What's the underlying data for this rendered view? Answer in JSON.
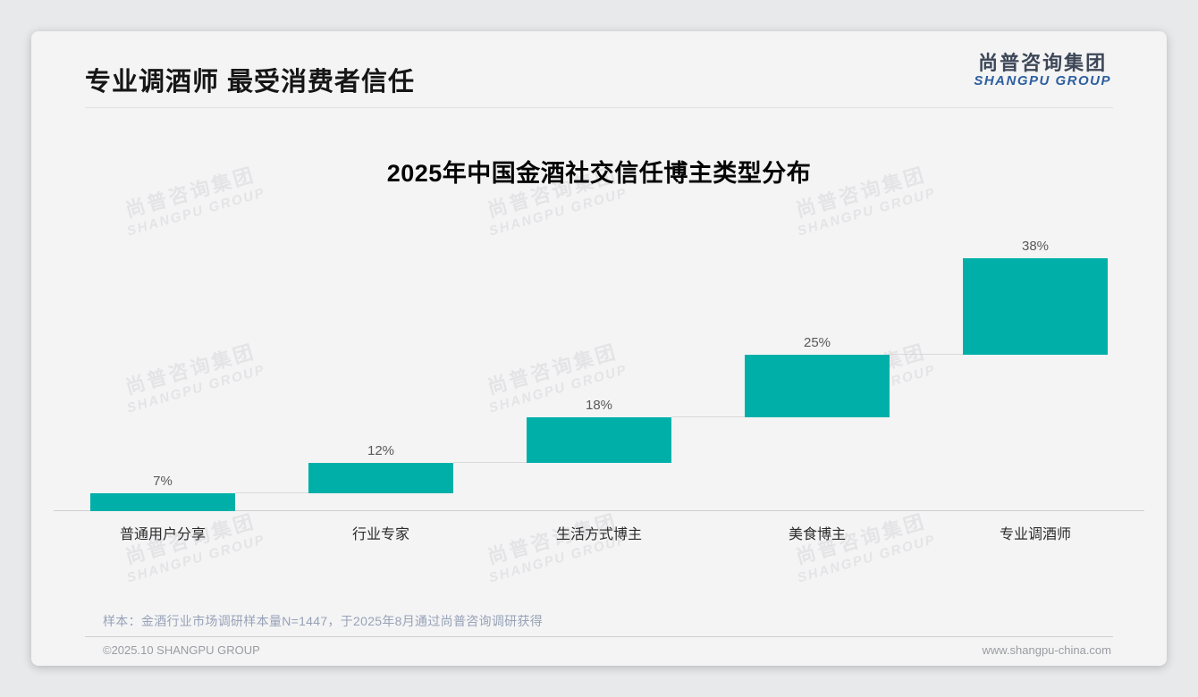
{
  "header": {
    "title": "专业调酒师 最受消费者信任"
  },
  "logo": {
    "cn": "尚普咨询集团",
    "en": "SHANGPU GROUP",
    "cn_color": "#3d4757",
    "en_color": "#2d5f9e"
  },
  "watermark": {
    "cn": "尚普咨询集团",
    "en": "SHANGPU GROUP"
  },
  "chart_data": {
    "type": "bar",
    "subtype": "waterfall-steps",
    "title": "2025年中国金酒社交信任博主类型分布",
    "categories": [
      "普通用户分享",
      "行业专家",
      "生活方式博主",
      "美食博主",
      "专业调酒师"
    ],
    "values": [
      7,
      12,
      18,
      25,
      38
    ],
    "labels": [
      "7%",
      "12%",
      "18%",
      "25%",
      "38%"
    ],
    "cumulative_start": [
      0,
      7,
      19,
      37,
      62
    ],
    "unit": "%",
    "ylim": [
      0,
      100
    ],
    "grid": false,
    "legend": false,
    "bar_color": "#00b0a8",
    "connector_color": "#d9d9d9",
    "layout_note": "each bar starts at the previous cumulative total; thin connector lines join consecutive bars; totals sum to 100%"
  },
  "footer": {
    "note": "样本：金酒行业市场调研样本量N=1447，于2025年8月通过尚普咨询调研获得",
    "copyright": "©2025.10 SHANGPU GROUP",
    "website": "www.shangpu-china.com"
  }
}
